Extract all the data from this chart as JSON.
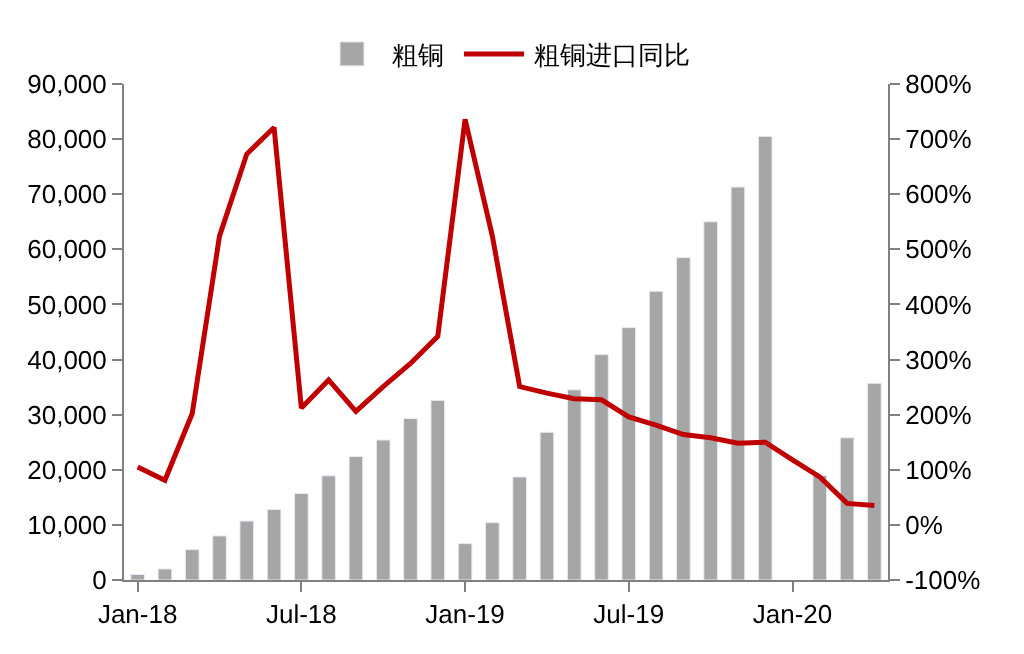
{
  "chart_data": {
    "type": "bar",
    "categories": [
      "Jan-18",
      null,
      null,
      null,
      null,
      null,
      "Jul-18",
      null,
      null,
      null,
      null,
      null,
      "Jan-19",
      null,
      null,
      null,
      null,
      null,
      "Jul-19",
      null,
      null,
      null,
      null,
      null,
      "Jan-20",
      null,
      null,
      null
    ],
    "series": [
      {
        "name": "粗铜",
        "color": "#a6a6a6",
        "values": [
          1000,
          2000,
          5500,
          8000,
          10700,
          12800,
          15700,
          18900,
          22400,
          25400,
          29300,
          32600,
          6600,
          10400,
          18700,
          26800,
          34500,
          40900,
          45800,
          52400,
          58500,
          65000,
          71300,
          80500,
          null,
          19000,
          25800,
          35700
        ]
      },
      {
        "name": "粗铜进口同比",
        "type": "line",
        "axis": "y2",
        "color": "#c00000",
        "values": [
          105,
          81,
          202,
          524,
          673,
          721,
          212,
          263,
          206,
          251,
          293,
          342,
          736,
          524,
          251,
          239,
          229,
          227,
          196,
          181,
          164,
          158,
          148,
          150,
          118,
          87,
          39,
          35
        ]
      }
    ],
    "ylim": [
      0,
      90000
    ],
    "yticks": [
      0,
      {
        "value": 10000,
        "label": "10,000"
      },
      {
        "value": 20000,
        "label": "20,000"
      },
      {
        "value": 30000,
        "label": "30,000"
      },
      {
        "value": 40000,
        "label": "40,000"
      },
      {
        "value": 50000,
        "label": "50,000"
      },
      {
        "value": 60000,
        "label": "60,000"
      },
      {
        "value": 70000,
        "label": "70,000"
      },
      {
        "value": 80000,
        "label": "80,000"
      },
      {
        "value": 90000,
        "label": "90,000"
      }
    ],
    "y2lim": [
      -100,
      800
    ],
    "y2ticks": [
      {
        "value": -100,
        "label": "-100%"
      },
      {
        "value": 0,
        "label": "0%"
      },
      {
        "value": 100,
        "label": "100%"
      },
      {
        "value": 200,
        "label": "200%"
      },
      {
        "value": 300,
        "label": "300%"
      },
      {
        "value": 400,
        "label": "400%"
      },
      {
        "value": 500,
        "label": "500%"
      },
      {
        "value": 600,
        "label": "600%"
      },
      {
        "value": 700,
        "label": "700%"
      },
      {
        "value": 800,
        "label": "800%"
      }
    ],
    "legend": "top"
  }
}
